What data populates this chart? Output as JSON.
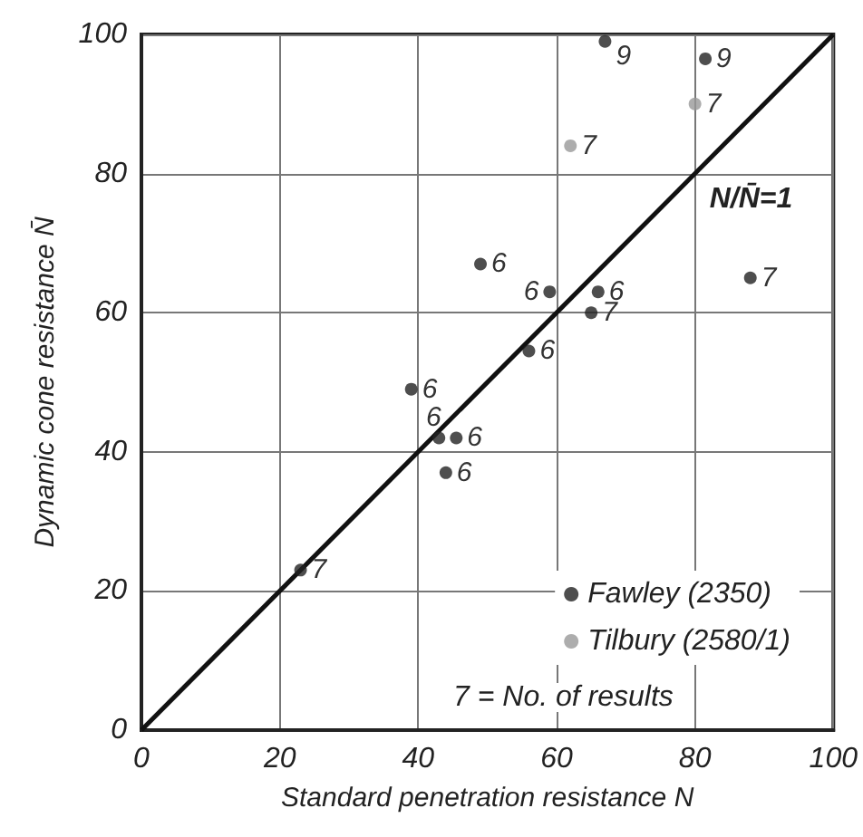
{
  "chart_data": {
    "type": "scatter",
    "xlabel": "Standard penetration resistance N",
    "ylabel": "Dynamic cone resistance N̄",
    "series": [
      {
        "name": "Fawley (2350)",
        "color": "#222222",
        "marker": "circle",
        "x": [
          23,
          39,
          43,
          45.5,
          44,
          56,
          49,
          59,
          66,
          65,
          67,
          81.5,
          88
        ],
        "values": [
          23,
          49,
          42,
          42,
          37,
          54.5,
          67,
          63,
          63,
          60,
          99,
          96.5,
          65
        ]
      },
      {
        "name": "Tilbury (2580/1)",
        "color": "#999999",
        "marker": "circle",
        "x": [
          62,
          80
        ],
        "values": [
          84,
          90
        ]
      },
      {
        "type": "line",
        "color": "#111111",
        "x": [
          0,
          100
        ],
        "values": [
          0,
          100
        ],
        "marker": "none"
      }
    ],
    "annotations": [
      {
        "text": "N/N̄=1",
        "x": 80,
        "y": 80
      },
      "7 = No. of results",
      {
        "text": "7",
        "x": 23,
        "y": 23
      },
      {
        "text": "6",
        "x": 39,
        "y": 49
      },
      {
        "text": "6",
        "x": 43,
        "y": 42
      },
      {
        "text": "6",
        "x": 45.5,
        "y": 42
      },
      {
        "text": "6",
        "x": 44,
        "y": 37
      },
      {
        "text": "6",
        "x": 56,
        "y": 54.5
      },
      {
        "text": "6",
        "x": 49,
        "y": 67
      },
      {
        "text": "6",
        "x": 59,
        "y": 63
      },
      {
        "text": "6",
        "x": 66,
        "y": 63
      },
      {
        "text": "7",
        "x": 65,
        "y": 60
      },
      {
        "text": "9",
        "x": 67,
        "y": 99
      },
      {
        "text": "9",
        "x": 81.5,
        "y": 96.5
      },
      {
        "text": "7",
        "x": 88,
        "y": 65
      },
      {
        "text": "7",
        "x": 62,
        "y": 84
      },
      {
        "text": "7",
        "x": 80,
        "y": 90
      }
    ],
    "xlim": [
      0,
      100
    ],
    "ylim": [
      0,
      100
    ],
    "xticks": [
      0,
      20,
      40,
      60,
      80,
      100
    ],
    "yticks": [
      0,
      20,
      40,
      60,
      80,
      100
    ],
    "grid": true,
    "legend": "bottom right"
  }
}
